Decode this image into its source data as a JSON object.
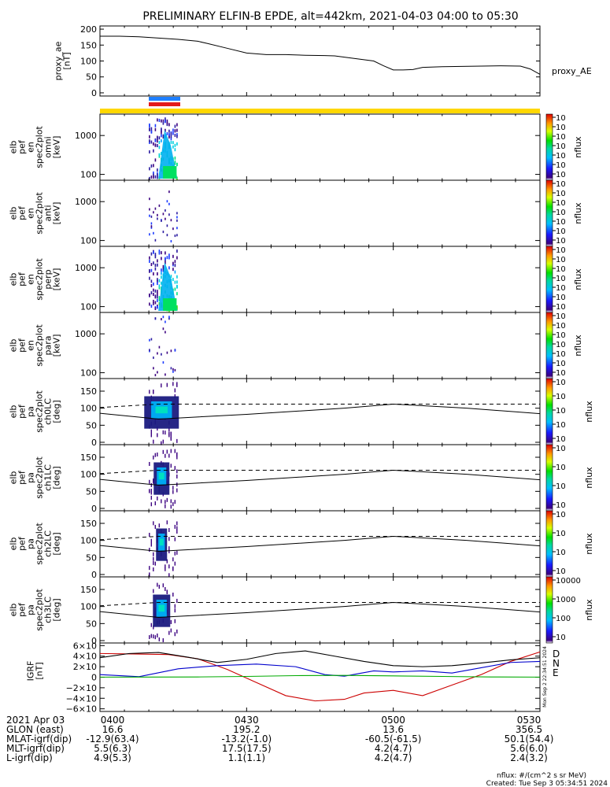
{
  "title": "PRELIMINARY ELFIN-B EPDE, alt=442km, 2021-04-03 04:00 to 05:30",
  "colors": {
    "ae_line": "#000000",
    "bar_yellow": "#ffd700",
    "bar_blue": "#1e7fff",
    "bar_red": "#e31a1c",
    "D": "#cc0000",
    "N": "#0000cc",
    "E": "#00aa00"
  },
  "panels": [
    {
      "ylabel_lines": [
        "proxy_ae",
        "[nT]"
      ],
      "right_label": "proxy_AE"
    },
    {
      "ylabel_lines": [
        "elb",
        "pef",
        "en",
        "spec2plot",
        "omni",
        "[keV]"
      ],
      "cbar_label": "nflux"
    },
    {
      "ylabel_lines": [
        "elb",
        "pef",
        "en",
        "spec2plot",
        "anti",
        "[keV]"
      ],
      "cbar_label": "nflux"
    },
    {
      "ylabel_lines": [
        "elb",
        "pef",
        "en",
        "spec2plot",
        "perp",
        "[keV]"
      ],
      "cbar_label": "nflux"
    },
    {
      "ylabel_lines": [
        "elb",
        "pef",
        "en",
        "spec2plot",
        "para",
        "[keV]"
      ],
      "cbar_label": "nflux"
    },
    {
      "ylabel_lines": [
        "elb",
        "pef",
        "pa",
        "spec2plot",
        "ch0LC",
        "[deg]"
      ],
      "cbar_label": "nflux"
    },
    {
      "ylabel_lines": [
        "elb",
        "pef",
        "pa",
        "spec2plot",
        "ch1LC",
        "[deg]"
      ],
      "cbar_label": "nflux"
    },
    {
      "ylabel_lines": [
        "elb",
        "pef",
        "pa",
        "spec2plot",
        "ch2LC",
        "[deg]"
      ],
      "cbar_label": "nflux"
    },
    {
      "ylabel_lines": [
        "elb",
        "pef",
        "pa",
        "spec2plot",
        "ch3LC",
        "[deg]"
      ],
      "cbar_label": "nflux"
    },
    {
      "ylabel_lines": [
        "IGRF",
        "[nT]"
      ],
      "legend": [
        "D",
        "N",
        "E"
      ]
    }
  ],
  "chart_data": [
    {
      "type": "line",
      "name": "proxy_ae",
      "x_minutes": [
        0,
        4,
        8,
        12,
        16,
        20,
        22,
        26,
        30,
        34,
        38,
        42,
        46,
        48,
        50,
        52,
        54,
        56,
        58,
        60,
        62,
        64,
        66,
        70,
        74,
        78,
        82,
        86,
        88,
        90
      ],
      "y": [
        178,
        178,
        176,
        172,
        168,
        162,
        155,
        140,
        125,
        120,
        120,
        118,
        117,
        116,
        112,
        108,
        104,
        100,
        85,
        72,
        72,
        73,
        80,
        82,
        83,
        84,
        85,
        84,
        75,
        58
      ],
      "yticks": [
        "0",
        "50",
        "100",
        "150",
        "200"
      ],
      "ylim": [
        -10,
        210
      ]
    },
    {
      "type": "heatmap",
      "name": "energy spectrograms",
      "yticks": [
        "100",
        "1000"
      ],
      "active_time_minutes": [
        10,
        16
      ],
      "colorbar_ticks": [
        "10<sup>1</sup>",
        "10<sup>2</sup>",
        "10<sup>3</sup>",
        "10<sup>4</sup>",
        "10<sup>5</sup>",
        "10<sup>6</sup>",
        "10<sup>7</sup>"
      ]
    },
    {
      "type": "heatmap",
      "name": "pitch angle spectrograms",
      "yticks": [
        "0",
        "50",
        "100",
        "150"
      ],
      "ylim": [
        0,
        180
      ],
      "lc_solid_deg": [
        85,
        68,
        82,
        100,
        112,
        100,
        84
      ],
      "lc_dashed_deg": [
        102,
        112,
        112,
        112,
        112,
        112,
        112
      ],
      "lc_x_minutes": [
        0,
        12,
        30,
        50,
        60,
        75,
        90
      ],
      "colorbar_sets": [
        [
          "10<sup>3</sup>",
          "10<sup>4</sup>",
          "10<sup>5</sup>",
          "10<sup>6</sup>",
          "10<sup>7</sup>"
        ],
        [
          "10<sup>3</sup>",
          "10<sup>4</sup>",
          "10<sup>5</sup>",
          "10<sup>6</sup>"
        ],
        [
          "10<sup>2</sup>",
          "10<sup>3</sup>",
          "10<sup>4</sup>",
          "10<sup>5</sup>"
        ],
        [
          "10",
          "100",
          "1000",
          "10000"
        ]
      ]
    },
    {
      "type": "line",
      "name": "IGRF",
      "yticks": [
        "6×10<sup>4</sup>",
        "4×10<sup>4</sup>",
        "2×10<sup>4</sup>",
        "0",
        "−2×10<sup>4</sup>",
        "−4×10<sup>4</sup>",
        "−6×10<sup>4</sup>"
      ],
      "ylim": [
        -65000,
        65000
      ],
      "series": [
        {
          "name": "D",
          "x_minutes": [
            0,
            8,
            14,
            20,
            26,
            32,
            38,
            44,
            50,
            54,
            60,
            66,
            72,
            78,
            84,
            90
          ],
          "values": [
            45000,
            44000,
            43000,
            35000,
            15000,
            -10000,
            -35000,
            -45000,
            -42000,
            -30000,
            -25000,
            -35000,
            -15000,
            5000,
            30000,
            48000
          ]
        },
        {
          "name": "Total",
          "x_minutes": [
            0,
            6,
            12,
            18,
            24,
            30,
            36,
            42,
            48,
            54,
            60,
            66,
            72,
            78,
            84,
            90
          ],
          "values": [
            37000,
            45000,
            47000,
            38000,
            28000,
            34000,
            45000,
            50000,
            40000,
            30000,
            22000,
            20000,
            22000,
            27000,
            33000,
            37000
          ]
        },
        {
          "name": "N",
          "x_minutes": [
            0,
            8,
            16,
            24,
            32,
            40,
            46,
            50,
            56,
            60,
            66,
            72,
            78,
            84,
            90
          ],
          "values": [
            5000,
            1000,
            16000,
            22000,
            25000,
            20000,
            5000,
            2000,
            12000,
            10000,
            12000,
            8000,
            18000,
            28000,
            30000
          ]
        },
        {
          "name": "E",
          "x_minutes": [
            0,
            10,
            20,
            30,
            40,
            50,
            60,
            70,
            80,
            90
          ],
          "values": [
            200,
            300,
            500,
            1500,
            3000,
            3500,
            2500,
            1500,
            500,
            200
          ]
        }
      ]
    }
  ],
  "xaxis": {
    "tick_labels": [
      "0400",
      "0430",
      "0500",
      "0530"
    ],
    "tick_minutes": [
      0,
      30,
      60,
      90
    ]
  },
  "orbit_table": {
    "rows": [
      {
        "label": "2021 Apr 03",
        "vals": [
          "0400",
          "0430",
          "0500",
          "0530"
        ]
      },
      {
        "label": "GLON (east)",
        "vals": [
          "16.6",
          "195.2",
          "13.6",
          "356.5"
        ]
      },
      {
        "label": "MLAT-igrf(dip)",
        "vals": [
          "-12.9(63.4)",
          "-13.2(-1.0)",
          "-60.5(-61.5)",
          "50.1(54.4)"
        ]
      },
      {
        "label": "MLT-igrf(dip)",
        "vals": [
          "5.5(6.3)",
          "17.5(17.5)",
          "4.2(4.7)",
          "5.6(6.0)"
        ]
      },
      {
        "label": "L-igrf(dip)",
        "vals": [
          "4.9(5.3)",
          "1.1(1.1)",
          "4.2(4.7)",
          "2.4(3.2)"
        ]
      }
    ]
  },
  "footer": {
    "units": "nflux: #/(cm^2 s sr MeV)",
    "created": "Created: Tue Sep  3 05:34:51 2024",
    "side_stamp": "Mon Sep  2 22:34:51 2024"
  }
}
